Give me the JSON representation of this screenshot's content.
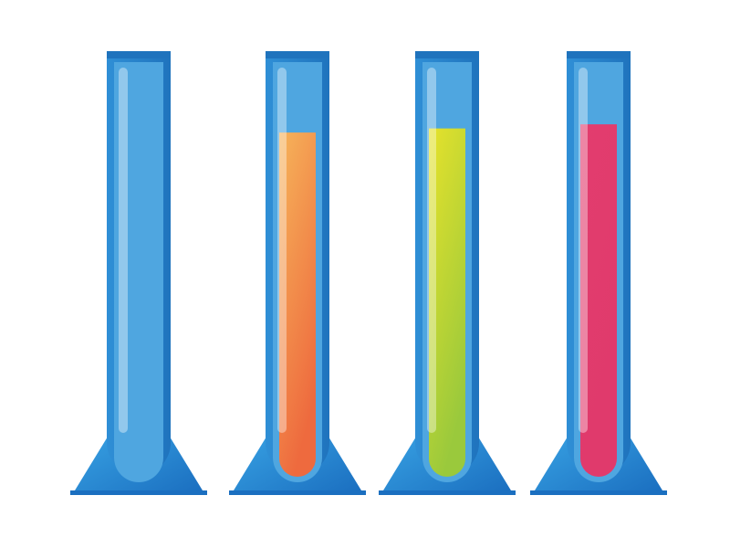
{
  "colors": {
    "background": "#ffffff",
    "cylinder_frame": "#2f8fd6",
    "cylinder_frame_dark": "#1f73bd",
    "cylinder_inner": "#4fa6e0",
    "cylinder_inner_light": "#6bb6e6",
    "base_light": "#3aa6e6",
    "base_dark": "#1b6fc0",
    "highlight": "#ffffff"
  },
  "cylinders": [
    {
      "name": "empty-cylinder",
      "fill_fraction": 0,
      "liquid_top": "#4fa6e0",
      "liquid_bottom": "#4fa6e0"
    },
    {
      "name": "orange-liquid-cylinder",
      "fill_fraction": 0.83,
      "liquid_top": "#f6b45a",
      "liquid_bottom": "#ee6a3e"
    },
    {
      "name": "yellow-green-liquid-cylinder",
      "fill_fraction": 0.84,
      "liquid_top": "#e6e22b",
      "liquid_bottom": "#9ac93c"
    },
    {
      "name": "pink-liquid-cylinder",
      "fill_fraction": 0.85,
      "liquid_top": "#e23d6e",
      "liquid_bottom": "#e03a6c"
    }
  ]
}
